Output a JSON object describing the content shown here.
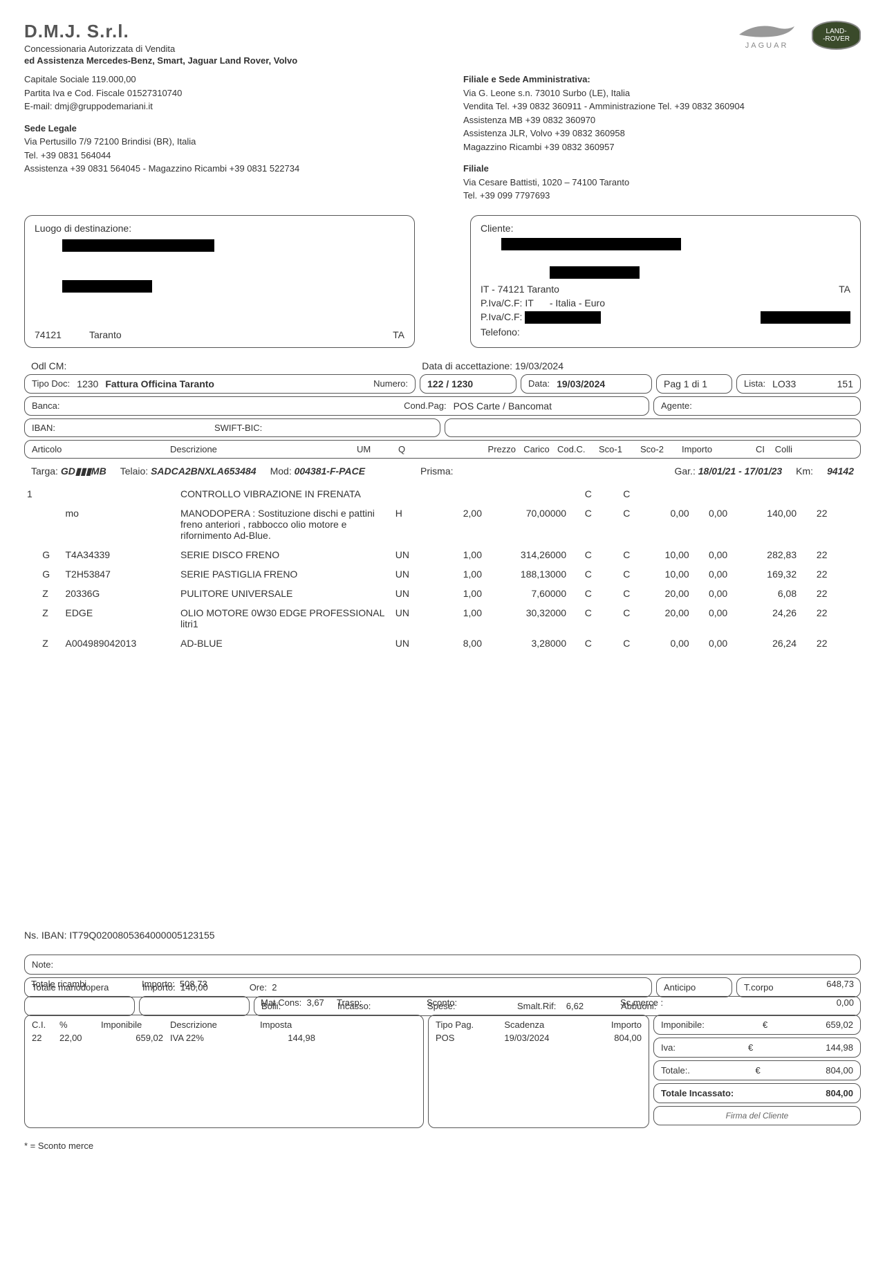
{
  "company": {
    "name": "D.M.J. S.r.l.",
    "line1": "Concessionaria Autorizzata di Vendita",
    "line2": "ed Assistenza Mercedes-Benz, Smart, Jaguar Land Rover, Volvo",
    "capitale": "Capitale Sociale 119.000,00",
    "piva": "Partita Iva e Cod. Fiscale 01527310740",
    "email": "E-mail: dmj@gruppodemariani.it",
    "sede_legale_title": "Sede Legale",
    "sede_legale_addr": "Via Pertusillo 7/9 72100 Brindisi (BR), Italia",
    "sede_tel": "Tel. +39 0831 564044",
    "sede_ass": "Assistenza +39 0831 564045  -  Magazzino Ricambi +39 0831 522734",
    "filiale_title": "Filiale e Sede Amministrativa:",
    "filiale_addr": "Via G. Leone s.n. 73010 Surbo (LE), Italia",
    "filiale_vend": "Vendita Tel. +39 0832 360911 - Amministrazione Tel. +39 0832 360904",
    "filiale_mb": "Assistenza MB +39 0832 360970",
    "filiale_jlr": "Assistenza JLR, Volvo +39 0832 360958",
    "filiale_mag": "Magazzino Ricambi  +39 0832 360957",
    "filiale2_title": "Filiale",
    "filiale2_addr": "Via Cesare Battisti, 1020 – 74100 Taranto",
    "filiale2_tel": "Tel. +39 099 7797693"
  },
  "logos": {
    "jaguar": "JAGUAR",
    "landrover1": "LAND-",
    "landrover2": "-ROVER"
  },
  "dest": {
    "label": "Luogo di destinazione:",
    "cap": "74121",
    "city": "Taranto",
    "prov": "TA"
  },
  "cliente": {
    "label": "Cliente:",
    "line3": "IT - 74121 Taranto",
    "prov": "TA",
    "piva_lbl": "P.Iva/C.F:  IT",
    "piva_mid": "- Italia - Euro",
    "piva2_lbl": "P.Iva/C.F:",
    "tel_lbl": "Telefono:"
  },
  "meta": {
    "odl_lbl": "Odl CM:",
    "data_acc_lbl": "Data di accettazione:",
    "data_acc": "19/03/2024",
    "tipo_doc_lbl": "Tipo Doc:",
    "tipo_doc_num": "1230",
    "tipo_doc_desc": "Fattura Officina Taranto",
    "numero_lbl": "Numero:",
    "numero": "122 / 1230",
    "data_lbl": "Data:",
    "data": "19/03/2024",
    "pag": "Pag 1 di 1",
    "lista_lbl": "Lista:",
    "lista": "LO33",
    "lista_n": "151",
    "banca_lbl": "Banca:",
    "condpag_lbl": "Cond.Pag:",
    "condpag": "POS Carte / Bancomat",
    "agente_lbl": "Agente:",
    "iban_lbl": "IBAN:",
    "swift_lbl": "SWIFT-BIC:"
  },
  "cols": {
    "articolo": "Articolo",
    "descrizione": "Descrizione",
    "um": "UM",
    "q": "Q",
    "prezzo": "Prezzo",
    "carico": "Carico",
    "codc": "Cod.C.",
    "sco1": "Sco-1",
    "sco2": "Sco-2",
    "importo": "Importo",
    "ci": "CI",
    "colli": "Colli"
  },
  "vehicle": {
    "targa_lbl": "Targa:",
    "targa": "GD▮▮▮MB",
    "telaio_lbl": "Telaio:",
    "telaio": "SADCA2BNXLA653484",
    "mod_lbl": "Mod:",
    "mod": "004381-F-PACE",
    "prisma_lbl": "Prisma:",
    "gar_lbl": "Gar.:",
    "gar": "18/01/21 - 17/01/23",
    "km_lbl": "Km:",
    "km": "94142"
  },
  "lines": [
    {
      "n": "1",
      "code": "",
      "art": "",
      "desc": "CONTROLLO VIBRAZIONE IN FRENATA",
      "um": "",
      "q": "",
      "prezzo": "",
      "carico": "C",
      "codc": "C",
      "sco1": "",
      "sco2": "",
      "importo": "",
      "ci": ""
    },
    {
      "n": "",
      "code": "",
      "art": "mo",
      "desc": "MANODOPERA : Sostituzione dischi e pattini freno anteriori , rabbocco olio motore e rifornimento Ad-Blue.",
      "um": "H",
      "q": "2,00",
      "prezzo": "70,00000",
      "carico": "C",
      "codc": "C",
      "sco1": "0,00",
      "sco2": "0,00",
      "importo": "140,00",
      "ci": "22"
    },
    {
      "n": "",
      "code": "G",
      "art": "T4A34339",
      "desc": "SERIE DISCO FRENO",
      "um": "UN",
      "q": "1,00",
      "prezzo": "314,26000",
      "carico": "C",
      "codc": "C",
      "sco1": "10,00",
      "sco2": "0,00",
      "importo": "282,83",
      "ci": "22"
    },
    {
      "n": "",
      "code": "G",
      "art": "T2H53847",
      "desc": "SERIE PASTIGLIA FRENO",
      "um": "UN",
      "q": "1,00",
      "prezzo": "188,13000",
      "carico": "C",
      "codc": "C",
      "sco1": "10,00",
      "sco2": "0,00",
      "importo": "169,32",
      "ci": "22"
    },
    {
      "n": "",
      "code": "Z",
      "art": "20336G",
      "desc": "PULITORE UNIVERSALE",
      "um": "UN",
      "q": "1,00",
      "prezzo": "7,60000",
      "carico": "C",
      "codc": "C",
      "sco1": "20,00",
      "sco2": "0,00",
      "importo": "6,08",
      "ci": "22"
    },
    {
      "n": "",
      "code": "Z",
      "art": "EDGE",
      "desc": "OLIO MOTORE 0W30 EDGE PROFESSIONAL litri1",
      "um": "UN",
      "q": "1,00",
      "prezzo": "30,32000",
      "carico": "C",
      "codc": "C",
      "sco1": "20,00",
      "sco2": "0,00",
      "importo": "24,26",
      "ci": "22"
    },
    {
      "n": "",
      "code": "Z",
      "art": "A004989042013",
      "desc": "AD-BLUE",
      "um": "UN",
      "q": "8,00",
      "prezzo": "3,28000",
      "carico": "C",
      "codc": "C",
      "sco1": "0,00",
      "sco2": "0,00",
      "importo": "26,24",
      "ci": "22"
    }
  ],
  "iban_line": "Ns. IBAN: IT79Q0200805364000005123155",
  "totals": {
    "note_lbl": "Note:",
    "manodopera_lbl": "Totale manodopera",
    "manodopera_imp_lbl": "Importo:",
    "manodopera_imp": "140,00",
    "ore_lbl": "Ore:",
    "ore": "2",
    "ricambi_lbl": "Totale ricambi",
    "ricambi_imp": "508,73",
    "anticipo_lbl": "Anticipo",
    "tcorpo_lbl": "T.corpo",
    "tcorpo": "648,73",
    "bolli_lbl": "Bolli:",
    "incasso_lbl": "Incasso:",
    "spese_lbl": "Spese:",
    "smalt_lbl": "Smalt.Rif:",
    "smalt": "6,62",
    "abbuoni_lbl": "Abbuoni:",
    "matcons_lbl": "Mat.Cons:",
    "matcons": "3,67",
    "trasp_lbl": "Trasp:",
    "sconto_lbl": "Sconto:",
    "scmerce_lbl": "Sc.merce :",
    "scmerce": "0,00",
    "ci_lbl": "C.I.",
    "perc_lbl": "%",
    "imponibile_lbl": "Imponibile",
    "descr_lbl": "Descrizione",
    "imposta_lbl": "Imposta",
    "ci": "22",
    "perc": "22,00",
    "imponibile": "659,02",
    "iva_desc": "IVA 22%",
    "imposta": "144,98",
    "tipopag_lbl": "Tipo Pag.",
    "tipopag": "POS",
    "scadenza_lbl": "Scadenza",
    "scadenza": "19/03/2024",
    "importo_lbl": "Importo",
    "importo": "804,00",
    "r_imponibile_lbl": "Imponibile:",
    "r_imponibile": "659,02",
    "r_iva_lbl": "Iva:",
    "r_iva": "144,98",
    "r_totale_lbl": "Totale:.",
    "r_totale": "804,00",
    "r_incassato_lbl": "Totale Incassato:",
    "r_incassato": "804,00",
    "firma_lbl": "Firma del Cliente",
    "euro": "€"
  },
  "footnote": "* = Sconto merce"
}
